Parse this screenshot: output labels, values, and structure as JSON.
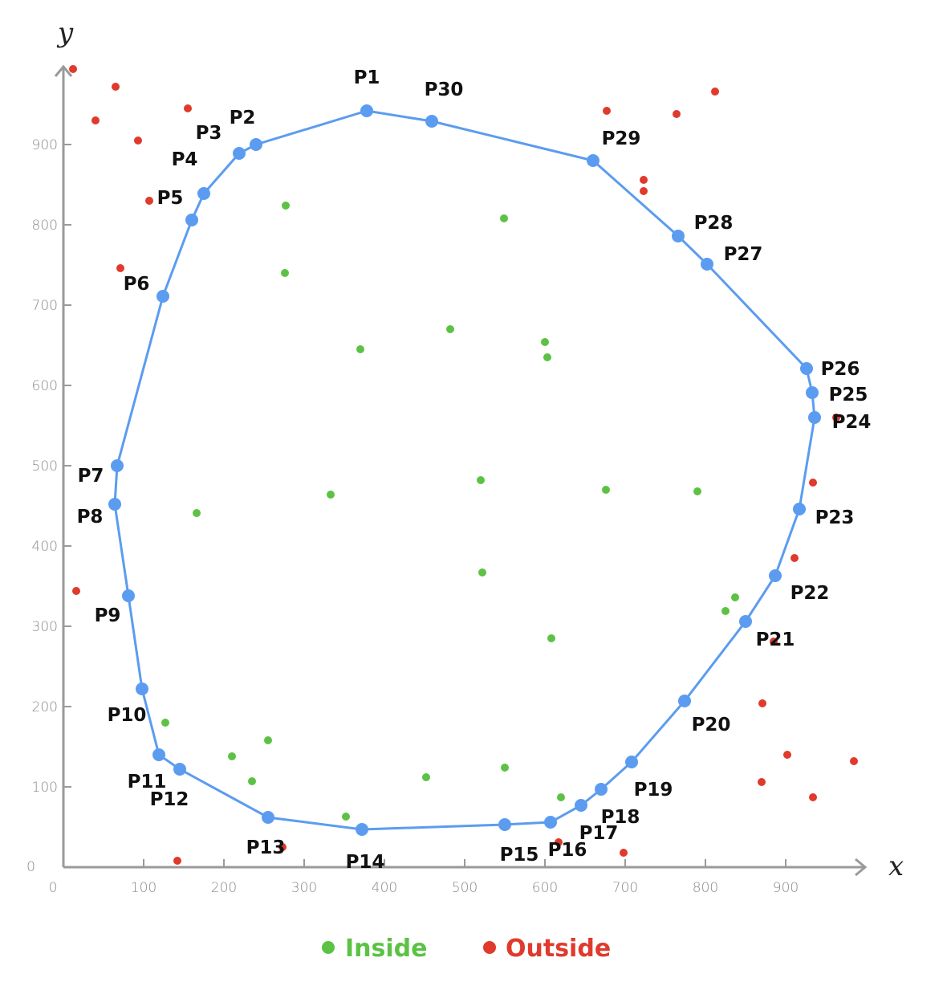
{
  "chart_data": {
    "type": "scatter",
    "xlabel": "x",
    "ylabel": "y",
    "xlim": [
      0,
      1000
    ],
    "ylim": [
      0,
      1000
    ],
    "x_ticks": [
      0,
      100,
      200,
      300,
      400,
      500,
      600,
      700,
      800,
      900
    ],
    "y_ticks": [
      0,
      100,
      200,
      300,
      400,
      500,
      600,
      700,
      800,
      900
    ],
    "grid": false,
    "legend_position": "bottom-center",
    "colors": {
      "polygon": "#5b9cf0",
      "inside": "#5cc244",
      "outside": "#e03a2d",
      "axis": "#9a9a9a"
    },
    "polygon": [
      {
        "label": "P1",
        "x": 378,
        "y": 942
      },
      {
        "label": "P2",
        "x": 240,
        "y": 900
      },
      {
        "label": "P3",
        "x": 219,
        "y": 889
      },
      {
        "label": "P4",
        "x": 175,
        "y": 839
      },
      {
        "label": "P5",
        "x": 160,
        "y": 806
      },
      {
        "label": "P6",
        "x": 124,
        "y": 711
      },
      {
        "label": "P7",
        "x": 67,
        "y": 500
      },
      {
        "label": "P8",
        "x": 64,
        "y": 452
      },
      {
        "label": "P9",
        "x": 81,
        "y": 338
      },
      {
        "label": "P10",
        "x": 98,
        "y": 222
      },
      {
        "label": "P11",
        "x": 119,
        "y": 140
      },
      {
        "label": "P12",
        "x": 145,
        "y": 122
      },
      {
        "label": "P13",
        "x": 255,
        "y": 62
      },
      {
        "label": "P14",
        "x": 372,
        "y": 47
      },
      {
        "label": "P15",
        "x": 550,
        "y": 53
      },
      {
        "label": "P16",
        "x": 607,
        "y": 56
      },
      {
        "label": "P17",
        "x": 645,
        "y": 77
      },
      {
        "label": "P18",
        "x": 670,
        "y": 97
      },
      {
        "label": "P19",
        "x": 708,
        "y": 131
      },
      {
        "label": "P20",
        "x": 774,
        "y": 207
      },
      {
        "label": "P21",
        "x": 850,
        "y": 306
      },
      {
        "label": "P22",
        "x": 887,
        "y": 363
      },
      {
        "label": "P23",
        "x": 917,
        "y": 446
      },
      {
        "label": "P24",
        "x": 936,
        "y": 560
      },
      {
        "label": "P25",
        "x": 933,
        "y": 591
      },
      {
        "label": "P26",
        "x": 926,
        "y": 621
      },
      {
        "label": "P27",
        "x": 802,
        "y": 751
      },
      {
        "label": "P28",
        "x": 766,
        "y": 786
      },
      {
        "label": "P29",
        "x": 660,
        "y": 880
      },
      {
        "label": "P30",
        "x": 459,
        "y": 929
      }
    ],
    "series": [
      {
        "name": "Inside",
        "points": [
          {
            "x": 277,
            "y": 824
          },
          {
            "x": 549,
            "y": 808
          },
          {
            "x": 276,
            "y": 740
          },
          {
            "x": 482,
            "y": 670
          },
          {
            "x": 370,
            "y": 645
          },
          {
            "x": 600,
            "y": 654
          },
          {
            "x": 603,
            "y": 635
          },
          {
            "x": 520,
            "y": 482
          },
          {
            "x": 676,
            "y": 470
          },
          {
            "x": 790,
            "y": 468
          },
          {
            "x": 333,
            "y": 464
          },
          {
            "x": 166,
            "y": 441
          },
          {
            "x": 522,
            "y": 367
          },
          {
            "x": 837,
            "y": 336
          },
          {
            "x": 825,
            "y": 319
          },
          {
            "x": 608,
            "y": 285
          },
          {
            "x": 127,
            "y": 180
          },
          {
            "x": 255,
            "y": 158
          },
          {
            "x": 210,
            "y": 138
          },
          {
            "x": 550,
            "y": 124
          },
          {
            "x": 452,
            "y": 112
          },
          {
            "x": 235,
            "y": 107
          },
          {
            "x": 620,
            "y": 87
          },
          {
            "x": 352,
            "y": 63
          }
        ]
      },
      {
        "name": "Outside",
        "points": [
          {
            "x": 12,
            "y": 994
          },
          {
            "x": 65,
            "y": 972
          },
          {
            "x": 155,
            "y": 945
          },
          {
            "x": 40,
            "y": 930
          },
          {
            "x": 93,
            "y": 905
          },
          {
            "x": 107,
            "y": 830
          },
          {
            "x": 71,
            "y": 746
          },
          {
            "x": 16,
            "y": 344
          },
          {
            "x": 812,
            "y": 966
          },
          {
            "x": 677,
            "y": 942
          },
          {
            "x": 764,
            "y": 938
          },
          {
            "x": 723,
            "y": 856
          },
          {
            "x": 723,
            "y": 842
          },
          {
            "x": 963,
            "y": 560
          },
          {
            "x": 934,
            "y": 479
          },
          {
            "x": 911,
            "y": 385
          },
          {
            "x": 885,
            "y": 281
          },
          {
            "x": 871,
            "y": 204
          },
          {
            "x": 985,
            "y": 132
          },
          {
            "x": 902,
            "y": 140
          },
          {
            "x": 870,
            "y": 106
          },
          {
            "x": 934,
            "y": 87
          },
          {
            "x": 617,
            "y": 31
          },
          {
            "x": 698,
            "y": 18
          },
          {
            "x": 273,
            "y": 25
          },
          {
            "x": 142,
            "y": 8
          }
        ]
      }
    ]
  }
}
